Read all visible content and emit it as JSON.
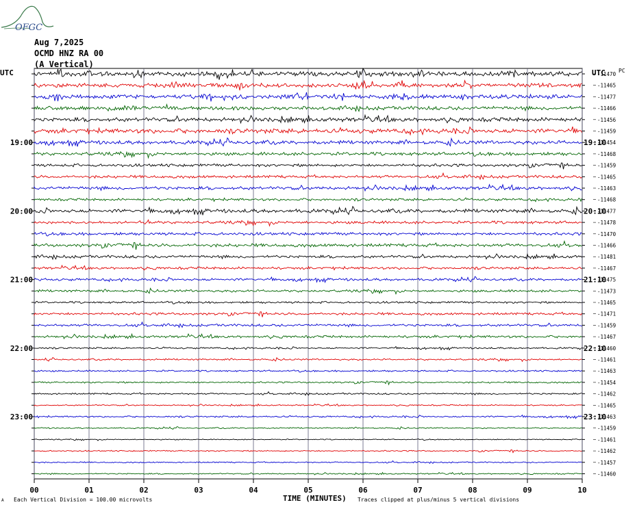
{
  "header": {
    "logo_text": "OFGC",
    "date": "Aug 7,2025",
    "station": "OCMD HNZ RA 00",
    "component": "(A Vertical)"
  },
  "labels": {
    "utc_left": "UTC",
    "utc_right": "UTC",
    "pc_label": "PC",
    "x_axis_title": "TIME (MINUTES)",
    "scale_note": "Each Vertical Division =  100.00 microvolts",
    "clip_note": "Traces clipped at plus/minus 5 vertical divisions",
    "corner_mark": "A"
  },
  "chart_data": {
    "type": "line",
    "title": "OCMD HNZ RA 00 (A Vertical)",
    "xlabel": "TIME (MINUTES)",
    "x_ticks": [
      "00",
      "01",
      "02",
      "03",
      "04",
      "05",
      "06",
      "07",
      "08",
      "09",
      "10"
    ],
    "xlim": [
      0,
      10
    ],
    "trace_colors": [
      "#000000",
      "#e00000",
      "#0000d0",
      "#006400"
    ],
    "hour_labels_left": [
      {
        "row": 6,
        "text": "19:00"
      },
      {
        "row": 12,
        "text": "20:00"
      },
      {
        "row": 18,
        "text": "21:00"
      },
      {
        "row": 24,
        "text": "22:00"
      },
      {
        "row": 30,
        "text": "23:00"
      }
    ],
    "hour_labels_right": [
      {
        "row": 6,
        "text": "19:10"
      },
      {
        "row": 12,
        "text": "20:10"
      },
      {
        "row": 18,
        "text": "21:10"
      },
      {
        "row": 24,
        "text": "22:10"
      },
      {
        "row": 30,
        "text": "23:10"
      }
    ],
    "trace_offsets": [
      "-11470",
      "-11465",
      "-11477",
      "-11466",
      "-11456",
      "-11459",
      "-11454",
      "-11468",
      "-11459",
      "-11465",
      "-11463",
      "-11468",
      "-11477",
      "-11478",
      "-11470",
      "-11466",
      "-11481",
      "-11467",
      "-11475",
      "-11473",
      "-11465",
      "-11471",
      "-11459",
      "-11467",
      "-11460",
      "-11461",
      "-11463",
      "-11454",
      "-11462",
      "-11465",
      "-11463",
      "-11459",
      "-11461",
      "-11462",
      "-11457",
      "-11460"
    ],
    "amplitude_level": [
      0.55,
      0.5,
      0.5,
      0.45,
      0.5,
      0.55,
      0.45,
      0.4,
      0.35,
      0.35,
      0.4,
      0.3,
      0.45,
      0.35,
      0.35,
      0.4,
      0.35,
      0.3,
      0.3,
      0.3,
      0.25,
      0.3,
      0.3,
      0.3,
      0.2,
      0.2,
      0.2,
      0.2,
      0.2,
      0.15,
      0.2,
      0.15,
      0.12,
      0.15,
      0.15,
      0.15
    ]
  }
}
